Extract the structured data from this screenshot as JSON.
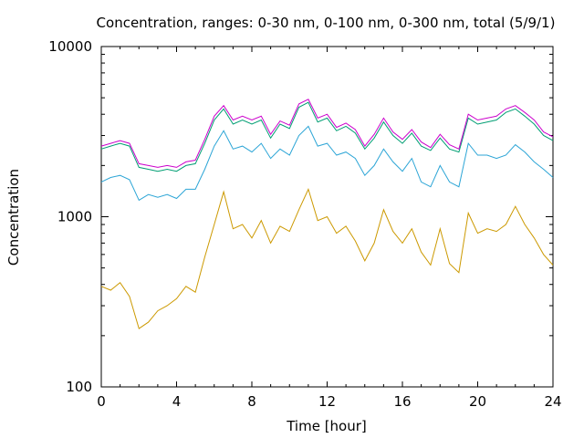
{
  "chart_data": {
    "type": "line",
    "title": "Concentration, ranges: 0-30 nm, 0-100 nm, 0-300 nm, total (5/9/1)",
    "xlabel": "Time [hour]",
    "ylabel": "Concentration",
    "xlim": [
      0,
      24
    ],
    "ylim": [
      100,
      10000
    ],
    "yscale": "log",
    "grid": false,
    "xticks": [
      "0",
      "4",
      "8",
      "12",
      "16",
      "20",
      "24"
    ],
    "yticks": [
      "100",
      "1000",
      "10000"
    ],
    "x": [
      0,
      0.5,
      1,
      1.5,
      2,
      2.5,
      3,
      3.5,
      4,
      4.5,
      5,
      5.5,
      6,
      6.5,
      7,
      7.5,
      8,
      8.5,
      9,
      9.5,
      10,
      10.5,
      11,
      11.5,
      12,
      12.5,
      13,
      13.5,
      14,
      14.5,
      15,
      15.5,
      16,
      16.5,
      17,
      17.5,
      18,
      18.5,
      19,
      19.5,
      20,
      20.5,
      21,
      21.5,
      22,
      22.5,
      23,
      23.5,
      24
    ],
    "series": [
      {
        "color": "#cc9900",
        "values": [
          390,
          370,
          410,
          340,
          220,
          240,
          280,
          300,
          330,
          390,
          360,
          580,
          900,
          1400,
          850,
          900,
          750,
          950,
          700,
          880,
          820,
          1100,
          1450,
          950,
          1000,
          800,
          880,
          720,
          550,
          700,
          1100,
          820,
          700,
          850,
          620,
          520,
          850,
          530,
          470,
          1050,
          800,
          850,
          820,
          900,
          1150,
          900,
          750,
          600,
          520
        ]
      },
      {
        "color": "#2ca5d6",
        "values": [
          1600,
          1700,
          1750,
          1650,
          1250,
          1350,
          1300,
          1350,
          1280,
          1450,
          1450,
          1900,
          2600,
          3200,
          2500,
          2600,
          2400,
          2700,
          2200,
          2500,
          2300,
          3000,
          3400,
          2600,
          2700,
          2300,
          2400,
          2200,
          1750,
          2000,
          2500,
          2100,
          1850,
          2200,
          1600,
          1500,
          2000,
          1600,
          1500,
          2700,
          2300,
          2300,
          2200,
          2300,
          2650,
          2400,
          2100,
          1900,
          1700
        ]
      },
      {
        "color": "#009e73",
        "values": [
          2500,
          2600,
          2700,
          2600,
          1950,
          1900,
          1850,
          1900,
          1850,
          2000,
          2050,
          2700,
          3700,
          4300,
          3500,
          3700,
          3500,
          3700,
          2900,
          3500,
          3300,
          4400,
          4700,
          3600,
          3800,
          3200,
          3400,
          3100,
          2500,
          2900,
          3600,
          3000,
          2700,
          3100,
          2600,
          2450,
          2900,
          2500,
          2400,
          3800,
          3500,
          3600,
          3700,
          4100,
          4300,
          3900,
          3500,
          3000,
          2800
        ]
      },
      {
        "color": "#cc00cc",
        "values": [
          2600,
          2700,
          2800,
          2700,
          2050,
          2000,
          1950,
          2000,
          1950,
          2100,
          2150,
          2850,
          3900,
          4500,
          3700,
          3900,
          3700,
          3900,
          3050,
          3650,
          3450,
          4600,
          4900,
          3800,
          4000,
          3350,
          3550,
          3250,
          2600,
          3050,
          3800,
          3150,
          2850,
          3250,
          2750,
          2550,
          3050,
          2650,
          2500,
          4000,
          3700,
          3800,
          3900,
          4300,
          4500,
          4100,
          3700,
          3150,
          2950
        ]
      }
    ]
  }
}
